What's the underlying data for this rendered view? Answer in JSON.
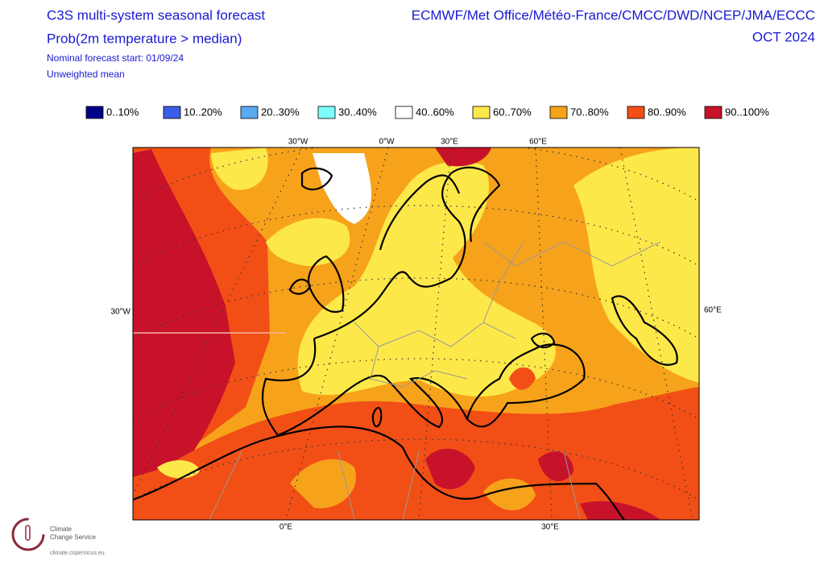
{
  "header": {
    "title": "C3S multi-system seasonal forecast",
    "subtitle": "Prob(2m temperature > median)",
    "forecast_start": "Nominal forecast start: 01/09/24",
    "method": "Unweighted mean",
    "centres": "ECMWF/Met Office/Météo-France/CMCC/DWD/NCEP/JMA/ECCC",
    "period": "OCT 2024"
  },
  "legend": [
    {
      "label": "0..10%",
      "color": "#00008b"
    },
    {
      "label": "10..20%",
      "color": "#3b5ee6"
    },
    {
      "label": "20..30%",
      "color": "#5aaaf0"
    },
    {
      "label": "30..40%",
      "color": "#7ffcfc"
    },
    {
      "label": "40..60%",
      "color": "#ffffff"
    },
    {
      "label": "60..70%",
      "color": "#fde84a"
    },
    {
      "label": "70..80%",
      "color": "#f7a21b"
    },
    {
      "label": "80..90%",
      "color": "#f24f16"
    },
    {
      "label": "90..100%",
      "color": "#c8122a"
    }
  ],
  "map_labels": {
    "top": [
      "30°W",
      "0°W",
      "30°E",
      "60°E"
    ],
    "left": "30°W",
    "right": "60°E",
    "bottom": [
      "0°E",
      "30°E"
    ]
  },
  "logo": {
    "line1": "Climate",
    "line2": "Change Service",
    "url": "climate.copernicus.eu"
  }
}
